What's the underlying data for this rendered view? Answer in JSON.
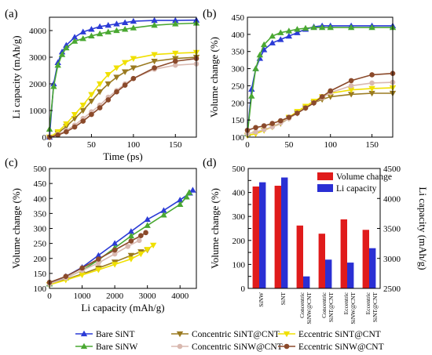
{
  "figure": {
    "legend_entries": [
      {
        "name": "Bare SiNT",
        "color": "#2b3bd6",
        "marker": "triangle-up"
      },
      {
        "name": "Concentric SiNT@CNT",
        "color": "#9a7a20",
        "marker": "triangle-down"
      },
      {
        "name": "Eccentric SiNT@CNT",
        "color": "#f0e000",
        "marker": "triangle-down"
      },
      {
        "name": "Bare SiNW",
        "color": "#4aa832",
        "marker": "triangle-up"
      },
      {
        "name": "Concentric SiNW@CNT",
        "color": "#d9b9b0",
        "marker": "circle"
      },
      {
        "name": "Eccentric SiNW@CNT",
        "color": "#8b4a2b",
        "marker": "circle"
      }
    ]
  },
  "chart_data": [
    {
      "panel": "(a)",
      "type": "line",
      "xlabel": "Time (ps)",
      "ylabel": "Li capacity (mAh/g)",
      "xlim": [
        0,
        175
      ],
      "ylim": [
        0,
        4500
      ],
      "xticks": [
        0,
        50,
        100,
        150
      ],
      "yticks": [
        0,
        1000,
        2000,
        3000,
        4000
      ],
      "series": [
        {
          "name": "Bare SiNT",
          "x": [
            0,
            5,
            10,
            15,
            20,
            30,
            40,
            50,
            60,
            70,
            80,
            90,
            100,
            125,
            150,
            175
          ],
          "y": [
            0,
            2000,
            2800,
            3200,
            3450,
            3750,
            3950,
            4050,
            4150,
            4200,
            4250,
            4300,
            4350,
            4380,
            4380,
            4390
          ]
        },
        {
          "name": "Bare SiNW",
          "x": [
            0,
            5,
            10,
            15,
            20,
            30,
            40,
            50,
            60,
            70,
            80,
            90,
            100,
            125,
            150,
            175
          ],
          "y": [
            300,
            1900,
            2700,
            3100,
            3350,
            3600,
            3700,
            3800,
            3880,
            3950,
            4000,
            4050,
            4100,
            4200,
            4250,
            4280
          ]
        },
        {
          "name": "Concentric SiNT@CNT",
          "x": [
            0,
            10,
            20,
            30,
            40,
            50,
            60,
            70,
            80,
            90,
            100,
            125,
            150,
            175
          ],
          "y": [
            0,
            150,
            400,
            700,
            1000,
            1350,
            1700,
            2000,
            2250,
            2450,
            2600,
            2850,
            2950,
            3000
          ]
        },
        {
          "name": "Eccentric SiNT@CNT",
          "x": [
            0,
            10,
            20,
            30,
            40,
            50,
            60,
            70,
            80,
            90,
            100,
            125,
            150,
            175
          ],
          "y": [
            0,
            200,
            500,
            850,
            1200,
            1600,
            2000,
            2350,
            2600,
            2800,
            2950,
            3100,
            3150,
            3180
          ]
        },
        {
          "name": "Concentric SiNW@CNT",
          "x": [
            0,
            10,
            20,
            30,
            40,
            50,
            60,
            70,
            80,
            90,
            100,
            125,
            150,
            175
          ],
          "y": [
            0,
            100,
            250,
            450,
            700,
            950,
            1200,
            1500,
            1750,
            2000,
            2200,
            2550,
            2700,
            2750
          ]
        },
        {
          "name": "Eccentric SiNW@CNT",
          "x": [
            0,
            10,
            20,
            30,
            40,
            50,
            60,
            70,
            80,
            90,
            100,
            125,
            150,
            175
          ],
          "y": [
            0,
            80,
            200,
            380,
            600,
            850,
            1100,
            1400,
            1700,
            1950,
            2200,
            2600,
            2850,
            2950
          ]
        }
      ]
    },
    {
      "panel": "(b)",
      "type": "line",
      "xlabel": "",
      "ylabel": "Volume change (%)",
      "xlim": [
        0,
        175
      ],
      "ylim": [
        100,
        450
      ],
      "xticks": [
        0,
        50,
        100,
        150
      ],
      "yticks": [
        100,
        150,
        200,
        250,
        300,
        350,
        400,
        450
      ],
      "series": [
        {
          "name": "Bare SiNT",
          "x": [
            0,
            5,
            10,
            15,
            20,
            30,
            40,
            50,
            60,
            70,
            80,
            90,
            100,
            125,
            150,
            175
          ],
          "y": [
            110,
            240,
            300,
            330,
            355,
            375,
            385,
            395,
            405,
            415,
            422,
            425,
            425,
            425,
            425,
            425
          ]
        },
        {
          "name": "Bare SiNW",
          "x": [
            0,
            5,
            10,
            15,
            20,
            30,
            40,
            50,
            60,
            70,
            80,
            90,
            100,
            125,
            150,
            175
          ],
          "y": [
            110,
            220,
            300,
            340,
            370,
            395,
            405,
            410,
            415,
            418,
            420,
            420,
            420,
            420,
            420,
            420
          ]
        },
        {
          "name": "Concentric SiNT@CNT",
          "x": [
            0,
            10,
            20,
            30,
            40,
            50,
            60,
            70,
            80,
            90,
            100,
            125,
            150,
            175
          ],
          "y": [
            105,
            110,
            120,
            130,
            140,
            155,
            170,
            185,
            200,
            210,
            218,
            225,
            228,
            228
          ]
        },
        {
          "name": "Eccentric SiNT@CNT",
          "x": [
            0,
            10,
            20,
            30,
            40,
            50,
            60,
            70,
            80,
            90,
            100,
            125,
            150,
            175
          ],
          "y": [
            105,
            110,
            120,
            130,
            142,
            158,
            175,
            190,
            205,
            218,
            228,
            238,
            242,
            244
          ]
        },
        {
          "name": "Concentric SiNW@CNT",
          "x": [
            0,
            10,
            20,
            30,
            40,
            50,
            60,
            70,
            80,
            90,
            100,
            125,
            150,
            175
          ],
          "y": [
            110,
            115,
            122,
            130,
            142,
            155,
            170,
            185,
            200,
            215,
            230,
            250,
            258,
            260
          ]
        },
        {
          "name": "Eccentric SiNW@CNT",
          "x": [
            0,
            10,
            20,
            30,
            40,
            50,
            60,
            70,
            80,
            90,
            100,
            125,
            150,
            175
          ],
          "y": [
            120,
            128,
            133,
            140,
            148,
            158,
            170,
            185,
            200,
            218,
            235,
            265,
            282,
            286
          ]
        }
      ]
    },
    {
      "panel": "(c)",
      "type": "line",
      "xlabel": "Li capacity (mAh/g)",
      "ylabel": "Volume change (%)",
      "xlim": [
        0,
        4500
      ],
      "ylim": [
        100,
        500
      ],
      "xticks": [
        0,
        1000,
        2000,
        3000,
        4000
      ],
      "yticks": [
        100,
        150,
        200,
        250,
        300,
        350,
        400,
        450,
        500
      ],
      "series": [
        {
          "name": "Bare SiNT",
          "x": [
            0,
            500,
            1000,
            1500,
            2000,
            2500,
            3000,
            3500,
            4000,
            4300,
            4390
          ],
          "y": [
            115,
            140,
            170,
            210,
            250,
            290,
            330,
            360,
            395,
            418,
            428
          ]
        },
        {
          "name": "Bare SiNW",
          "x": [
            0,
            500,
            1000,
            1500,
            2000,
            2500,
            3000,
            3500,
            4000,
            4200,
            4280
          ],
          "y": [
            115,
            135,
            160,
            195,
            235,
            275,
            310,
            345,
            380,
            405,
            420
          ]
        },
        {
          "name": "Concentric SiNT@CNT",
          "x": [
            0,
            500,
            1000,
            1500,
            2000,
            2500,
            2800,
            3000
          ],
          "y": [
            112,
            130,
            148,
            168,
            188,
            210,
            222,
            228
          ]
        },
        {
          "name": "Eccentric SiNT@CNT",
          "x": [
            0,
            500,
            1000,
            1500,
            2000,
            2500,
            2800,
            3000,
            3180
          ],
          "y": [
            112,
            128,
            145,
            162,
            180,
            198,
            215,
            230,
            244
          ]
        },
        {
          "name": "Concentric SiNW@CNT",
          "x": [
            0,
            500,
            1000,
            1500,
            2000,
            2400,
            2750
          ],
          "y": [
            115,
            135,
            160,
            185,
            215,
            240,
            260
          ]
        },
        {
          "name": "Eccentric SiNW@CNT",
          "x": [
            0,
            500,
            1000,
            1500,
            2000,
            2500,
            2800,
            2950
          ],
          "y": [
            120,
            140,
            168,
            198,
            228,
            258,
            276,
            286
          ]
        }
      ]
    },
    {
      "panel": "(d)",
      "type": "bar",
      "categories": [
        "SiNW",
        "SiNT",
        "Concentric SiNW@CNT",
        "Concentric SiNT@CNT",
        "Eccentric SiNW@CNT",
        "Eccentric SiNT@CNT"
      ],
      "category_lines": [
        [
          "SiNW"
        ],
        [
          "SiNT"
        ],
        [
          "Concentric",
          "SiNW@CNT"
        ],
        [
          "Concentric",
          "SiNT@CNT"
        ],
        [
          "Eccentric",
          "SiNW@CNT"
        ],
        [
          "Eccentric",
          "SiNT@CNT"
        ]
      ],
      "ylabel": "Volume change (%)",
      "y2label": "Li capacity (mAh/g)",
      "ylim": [
        0,
        500
      ],
      "y2lim": [
        2500,
        4500
      ],
      "yticks": [
        0,
        50,
        100,
        150,
        200,
        250,
        300,
        350,
        400,
        450,
        500
      ],
      "y2ticks": [
        2500,
        3000,
        3500,
        4000,
        4500
      ],
      "legend_placement": "top-right",
      "series": [
        {
          "name": "Volume change",
          "axis": "left",
          "color": "#e01b1b",
          "values": [
            425,
            428,
            262,
            228,
            288,
            244
          ]
        },
        {
          "name": "Li capacity",
          "axis": "right",
          "color": "#2a2fd4",
          "values": [
            4270,
            4350,
            2700,
            2980,
            2930,
            3170
          ]
        }
      ]
    }
  ]
}
